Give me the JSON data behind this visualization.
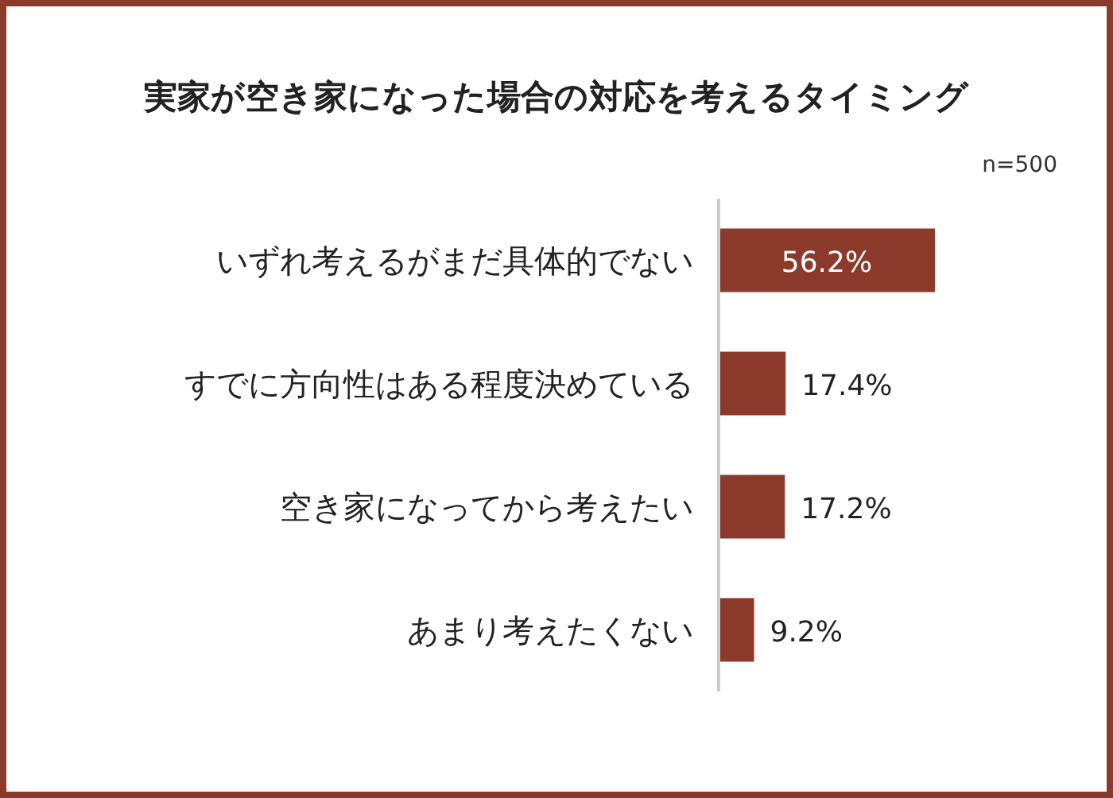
{
  "chart_data": {
    "type": "bar",
    "orientation": "horizontal",
    "title": "実家が空き家になった場合の対応を考えるタイミング",
    "annotations": [
      "n=500"
    ],
    "categories": [
      "いずれ考えるがまだ具体的でない",
      "すでに方向性はある程度決めている",
      "空き家になってから考えたい",
      "あまり考えたくない"
    ],
    "values": [
      56.2,
      17.4,
      17.2,
      9.2
    ],
    "value_labels": [
      "56.2%",
      "17.4%",
      "17.2%",
      "9.2%"
    ],
    "color": "#8b3a2b"
  }
}
